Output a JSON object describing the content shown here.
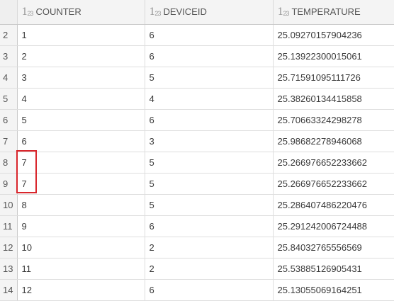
{
  "columns": [
    {
      "icon": "123",
      "label": "COUNTER"
    },
    {
      "icon": "123",
      "label": "DEVICEID"
    },
    {
      "icon": "123",
      "label": "TEMPERATURE"
    }
  ],
  "rows": [
    {
      "num": "2",
      "counter": "1",
      "deviceid": "6",
      "temperature": "25.09270157904236"
    },
    {
      "num": "3",
      "counter": "2",
      "deviceid": "6",
      "temperature": "25.13922300015061"
    },
    {
      "num": "4",
      "counter": "3",
      "deviceid": "5",
      "temperature": "25.71591095111726"
    },
    {
      "num": "5",
      "counter": "4",
      "deviceid": "4",
      "temperature": "25.38260134415858"
    },
    {
      "num": "6",
      "counter": "5",
      "deviceid": "6",
      "temperature": "25.70663324298278"
    },
    {
      "num": "7",
      "counter": "6",
      "deviceid": "3",
      "temperature": "25.98682278946068"
    },
    {
      "num": "8",
      "counter": "7",
      "deviceid": "5",
      "temperature": "25.266976652233662"
    },
    {
      "num": "9",
      "counter": "7",
      "deviceid": "5",
      "temperature": "25.266976652233662"
    },
    {
      "num": "10",
      "counter": "8",
      "deviceid": "5",
      "temperature": "25.286407486220476"
    },
    {
      "num": "11",
      "counter": "9",
      "deviceid": "6",
      "temperature": "25.291242006724488"
    },
    {
      "num": "12",
      "counter": "10",
      "deviceid": "2",
      "temperature": "25.84032765556569"
    },
    {
      "num": "13",
      "counter": "11",
      "deviceid": "2",
      "temperature": "25.53885126905431"
    },
    {
      "num": "14",
      "counter": "12",
      "deviceid": "6",
      "temperature": "25.13055069164251"
    }
  ],
  "highlight_color": "#d9262c"
}
